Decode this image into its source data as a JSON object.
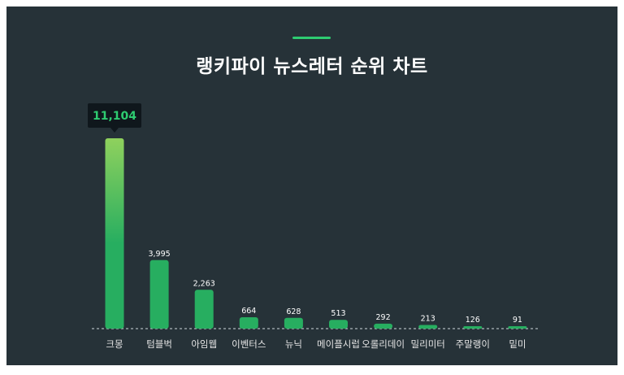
{
  "title": "랭키파이 뉴스레터 순위 차트",
  "colors": {
    "background": "#263238",
    "accent": "#2ecc71",
    "bar_top": "#8fd15d",
    "bar": "#27ae60",
    "tooltip_bg": "#0f171c",
    "tooltip_text": "#2ecc71",
    "label": "#e6e6e6"
  },
  "chart_data": {
    "type": "bar",
    "title": "랭키파이 뉴스레터 순위 차트",
    "categories": [
      "크몽",
      "텀블벅",
      "아임웹",
      "이벤터스",
      "뉴닉",
      "메이플시럽",
      "오롤리데이",
      "밀리미터",
      "주말랭이",
      "밑미"
    ],
    "values": [
      11104,
      3995,
      2263,
      664,
      628,
      513,
      292,
      213,
      126,
      91
    ],
    "value_labels": [
      "11,104",
      "3,995",
      "2,263",
      "664",
      "628",
      "513",
      "292",
      "213",
      "126",
      "91"
    ],
    "highlight_index": 0,
    "grid": false,
    "ylim": [
      0,
      11104
    ]
  }
}
